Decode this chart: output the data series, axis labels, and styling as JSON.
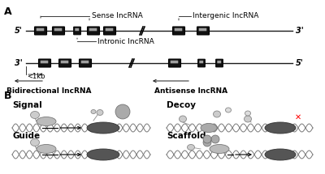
{
  "bg_color": "#ffffff",
  "panel_A_label": "A",
  "panel_B_label": "B",
  "sense_label": "Sense lncRNA",
  "intergenic_label": "Intergenic lncRNA",
  "intronic_label": "Intronic lncRNA",
  "bidirectional_label": "Bidirectional lncRNA",
  "antisense_label": "Antisense lncRNA",
  "signal_label": "Signal",
  "decoy_label": "Decoy",
  "guide_label": "Guide",
  "scaffold_label": "Scaffold",
  "label_1kb": "<1kb",
  "five_prime_top": "5'",
  "three_prime_top": "3'",
  "three_prime_bot": "3'",
  "five_prime_bot": "5'",
  "line_color": "#1a1a1a",
  "font_size_label": 7,
  "font_size_panel": 9,
  "font_size_prime": 7
}
